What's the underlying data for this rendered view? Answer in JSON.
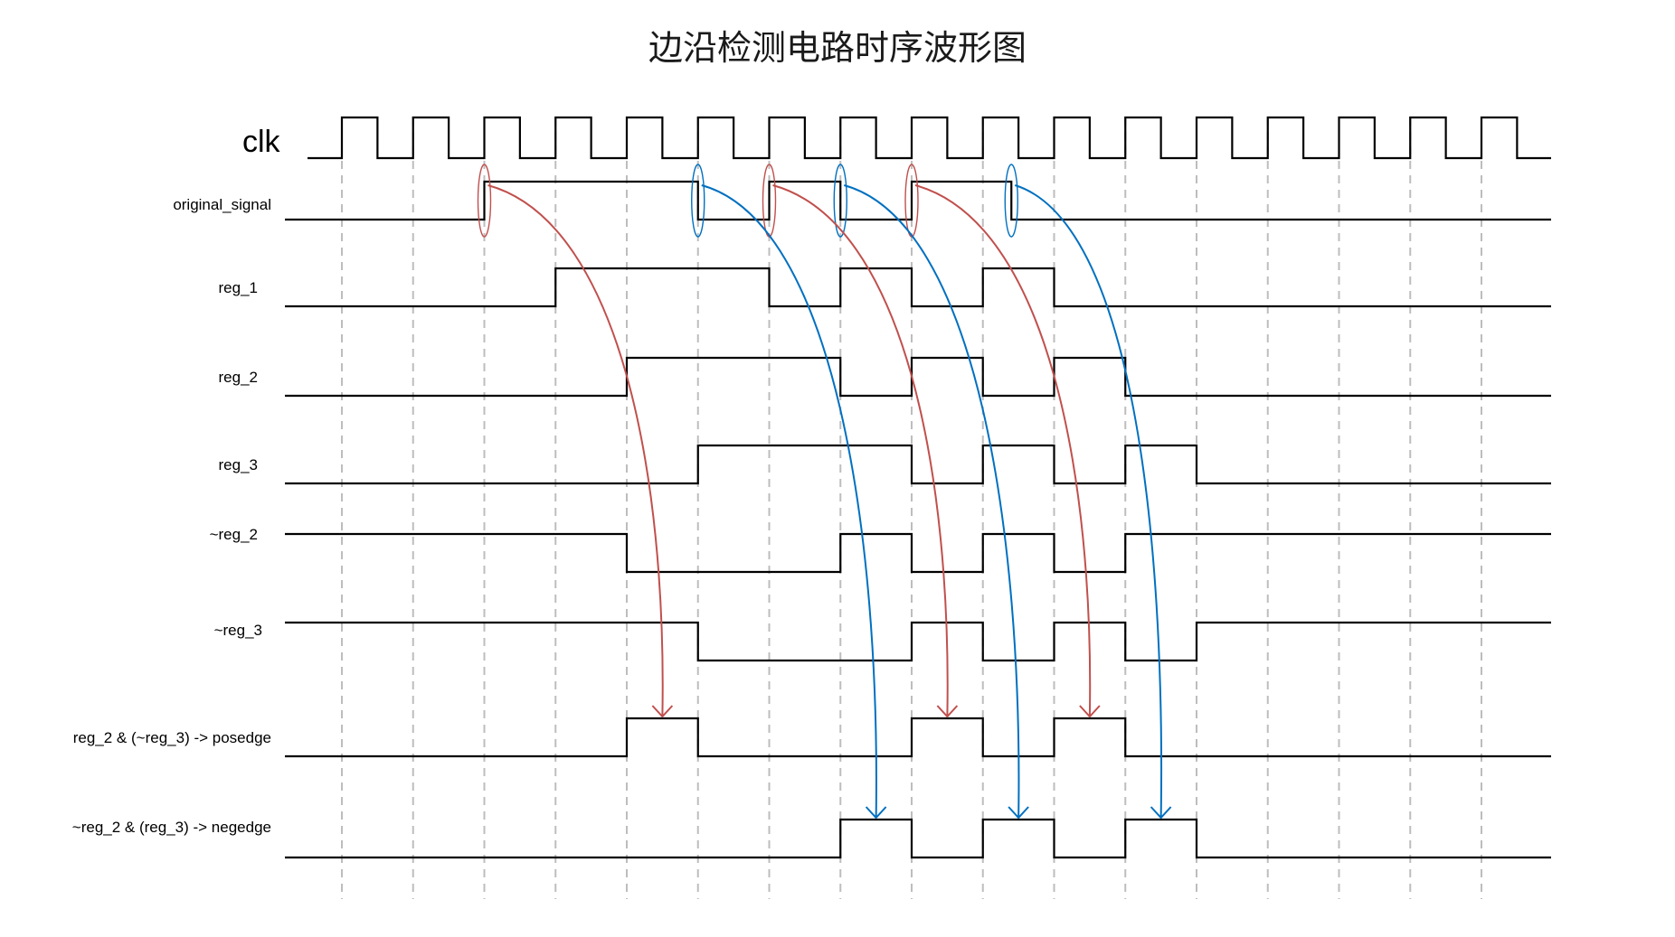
{
  "title": "边沿检测电路时序波形图",
  "clock": {
    "label": "clk",
    "cycles": 17
  },
  "signals": [
    {
      "id": "original_signal",
      "label": "original_signal",
      "transitions": [
        [
          0,
          0
        ],
        [
          2,
          1
        ],
        [
          5,
          0
        ],
        [
          6,
          1
        ],
        [
          7,
          0
        ],
        [
          8,
          1
        ],
        [
          9.4,
          0
        ]
      ]
    },
    {
      "id": "reg_1",
      "label": "reg_1",
      "transitions": [
        [
          0,
          0
        ],
        [
          3,
          1
        ],
        [
          6,
          0
        ],
        [
          7,
          1
        ],
        [
          8,
          0
        ],
        [
          9,
          1
        ],
        [
          10,
          0
        ]
      ]
    },
    {
      "id": "reg_2",
      "label": "reg_2",
      "transitions": [
        [
          0,
          0
        ],
        [
          4,
          1
        ],
        [
          7,
          0
        ],
        [
          8,
          1
        ],
        [
          9,
          0
        ],
        [
          10,
          1
        ],
        [
          11,
          0
        ]
      ]
    },
    {
      "id": "reg_3",
      "label": "reg_3",
      "transitions": [
        [
          0,
          0
        ],
        [
          5,
          1
        ],
        [
          8,
          0
        ],
        [
          9,
          1
        ],
        [
          10,
          0
        ],
        [
          11,
          1
        ],
        [
          12,
          0
        ]
      ]
    },
    {
      "id": "not_reg_2",
      "label": "~reg_2",
      "transitions": [
        [
          0,
          1
        ],
        [
          4,
          0
        ],
        [
          7,
          1
        ],
        [
          8,
          0
        ],
        [
          9,
          1
        ],
        [
          10,
          0
        ],
        [
          11,
          1
        ]
      ]
    },
    {
      "id": "not_reg_3",
      "label": "~reg_3",
      "transitions": [
        [
          0,
          1
        ],
        [
          5,
          0
        ],
        [
          8,
          1
        ],
        [
          9,
          0
        ],
        [
          10,
          1
        ],
        [
          11,
          0
        ],
        [
          12,
          1
        ]
      ]
    },
    {
      "id": "posedge",
      "label": "reg_2 & (~reg_3) -> posedge",
      "transitions": [
        [
          0,
          0
        ],
        [
          4,
          1
        ],
        [
          5,
          0
        ],
        [
          8,
          1
        ],
        [
          9,
          0
        ],
        [
          10,
          1
        ],
        [
          11,
          0
        ]
      ]
    },
    {
      "id": "negedge",
      "label": "~reg_2 & (reg_3) -> negedge",
      "transitions": [
        [
          0,
          0
        ],
        [
          7,
          1
        ],
        [
          8,
          0
        ],
        [
          9,
          1
        ],
        [
          10,
          0
        ],
        [
          11,
          1
        ],
        [
          12,
          0
        ]
      ]
    }
  ],
  "colors": {
    "posedge_arrow": "#c0504d",
    "negedge_arrow": "#0070c0",
    "wave": "#000000",
    "grid": "#bdbdbd"
  },
  "edge_markers": [
    {
      "type": "rise",
      "at": 2
    },
    {
      "type": "fall",
      "at": 5
    },
    {
      "type": "rise",
      "at": 6
    },
    {
      "type": "fall",
      "at": 7
    },
    {
      "type": "rise",
      "at": 8
    },
    {
      "type": "fall",
      "at": 9.4
    }
  ],
  "arrows": [
    {
      "type": "rise",
      "from": 2,
      "to": 4.5
    },
    {
      "type": "fall",
      "from": 5,
      "to": 7.5
    },
    {
      "type": "rise",
      "from": 6,
      "to": 8.5
    },
    {
      "type": "fall",
      "from": 7,
      "to": 9.5
    },
    {
      "type": "rise",
      "from": 8,
      "to": 10.5
    },
    {
      "type": "fall",
      "from": 9.4,
      "to": 11.5
    }
  ]
}
